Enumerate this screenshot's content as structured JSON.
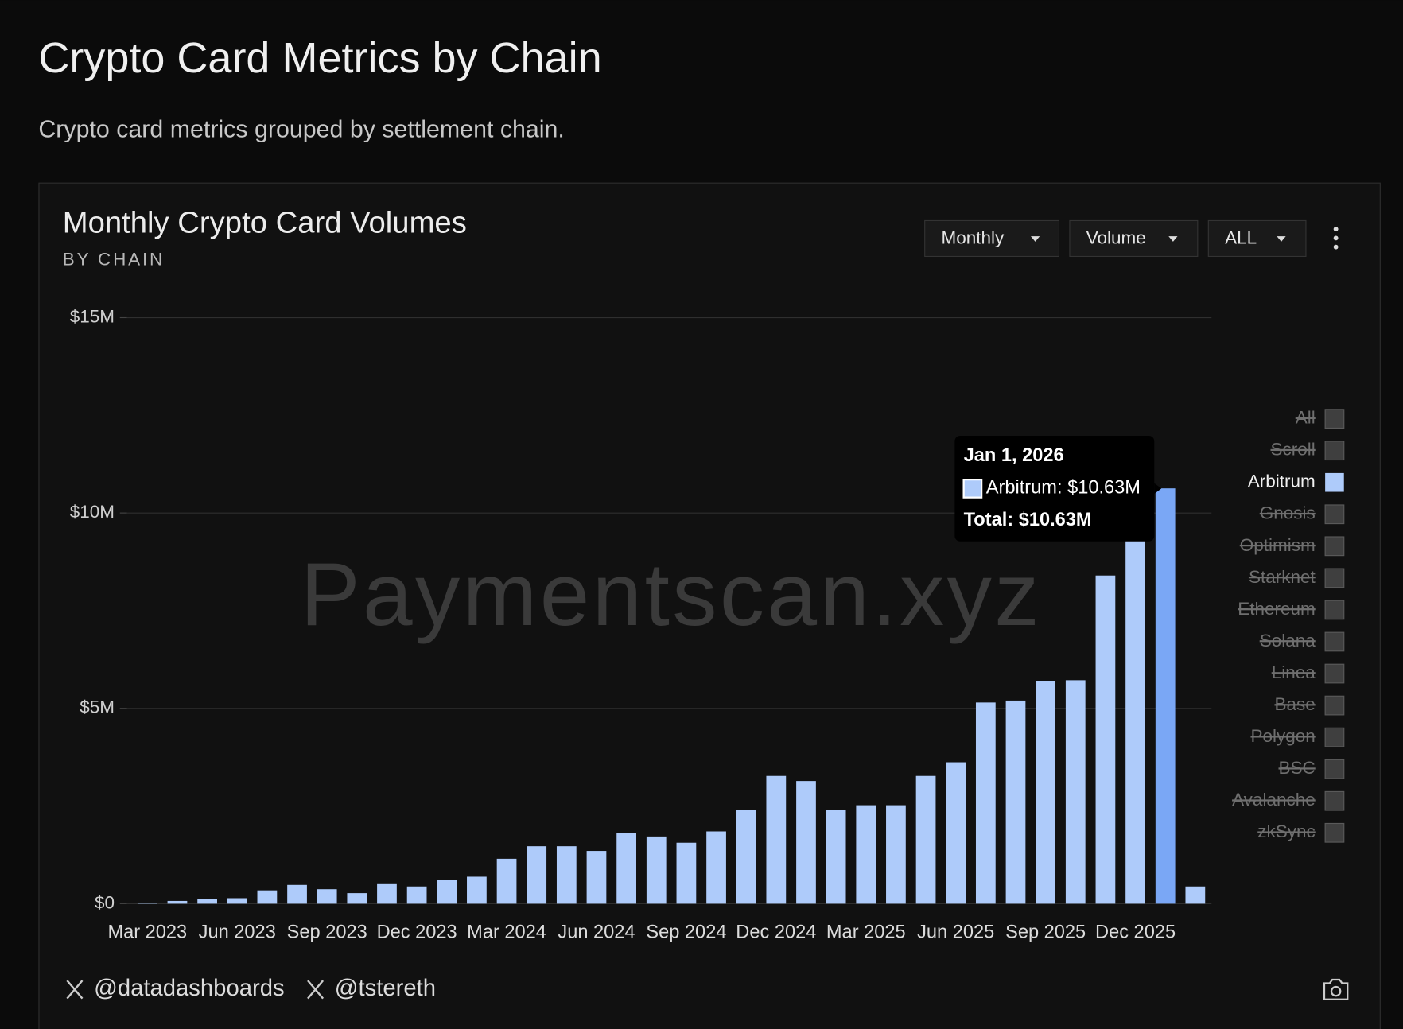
{
  "header": {
    "title": "Crypto Card Metrics by Chain",
    "subtitle": "Crypto card metrics grouped by settlement chain."
  },
  "controls": {
    "frequency": "Monthly",
    "metric": "Volume",
    "range": "ALL"
  },
  "footer": {
    "handles": [
      "@datadashboards",
      "@tstereth"
    ]
  },
  "chart_data": {
    "type": "bar",
    "title": "Monthly Crypto Card Volumes",
    "subtitle": "BY CHAIN",
    "watermark": "Paymentscan.xyz",
    "categories": [
      "Mar 2023",
      null,
      null,
      "Jun 2023",
      null,
      null,
      "Sep 2023",
      null,
      null,
      "Dec 2023",
      null,
      null,
      "Mar 2024",
      null,
      null,
      "Jun 2024",
      null,
      null,
      "Sep 2024",
      null,
      null,
      "Dec 2024",
      null,
      null,
      "Mar 2025",
      null,
      null,
      "Jun 2025",
      null,
      null,
      "Sep 2025",
      null,
      null,
      "Dec 2025",
      null,
      null
    ],
    "series": [
      {
        "name": "Arbitrum",
        "color": "#aecbfa",
        "values": [
          20000,
          70000,
          110000,
          140000,
          340000,
          480000,
          370000,
          270000,
          500000,
          440000,
          600000,
          690000,
          1150000,
          1470000,
          1470000,
          1350000,
          1810000,
          1720000,
          1560000,
          1850000,
          2400000,
          3270000,
          3140000,
          2400000,
          2520000,
          2520000,
          3270000,
          3620000,
          5150000,
          5200000,
          5700000,
          5720000,
          8400000,
          9850000,
          10630000,
          440000
        ]
      }
    ],
    "ylim": [
      0,
      15000000
    ],
    "yticks": [
      {
        "value": 0,
        "label": "$0"
      },
      {
        "value": 5000000,
        "label": "$5M"
      },
      {
        "value": 10000000,
        "label": "$10M"
      },
      {
        "value": 15000000,
        "label": "$15M"
      }
    ],
    "grid": true,
    "legend": {
      "position": "right",
      "hidden_above": [
        "All",
        "Scroll"
      ],
      "hidden_below": [
        "Gnosis",
        "Optimism",
        "Starknet",
        "Ethereum",
        "Solana",
        "Linea",
        "Base",
        "Polygon",
        "BSC",
        "Avalanche",
        "zkSync"
      ]
    },
    "tooltip": {
      "index": 34,
      "highlight_color": "#7aa7f5",
      "title": "Jan 1, 2026",
      "label": "Arbitrum: $10.63M",
      "total": "Total: $10.63M"
    }
  }
}
